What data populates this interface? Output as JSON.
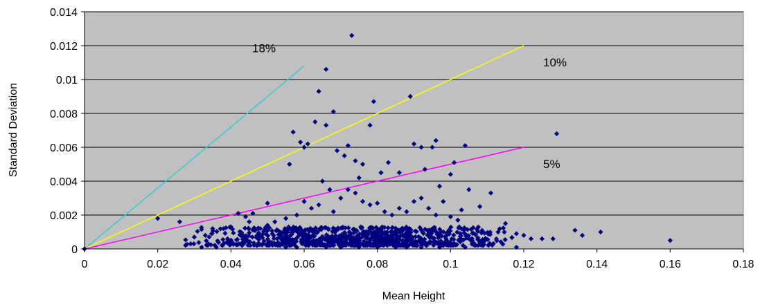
{
  "chart_data": {
    "type": "scatter",
    "title": "",
    "xlabel": "Mean Height",
    "ylabel": "Standard Deviation",
    "xlim": [
      0,
      0.18
    ],
    "ylim": [
      0,
      0.014
    ],
    "x_ticks": [
      "0",
      "0.02",
      "0.04",
      "0.06",
      "0.08",
      "0.1",
      "0.12",
      "0.14",
      "0.16",
      "0.18"
    ],
    "y_ticks": [
      "0",
      "0.002",
      "0.004",
      "0.006",
      "0.008",
      "0.01",
      "0.012",
      "0.014"
    ],
    "grid": "horizontal",
    "plot_background": "#c0c0c0",
    "marker_color": "#000080",
    "reference_lines": [
      {
        "label": "18%",
        "color": "#33cccc",
        "x": [
          0,
          0.06
        ],
        "y": [
          0,
          0.0108
        ]
      },
      {
        "label": "10%",
        "color": "#ffff00",
        "x": [
          0,
          0.12
        ],
        "y": [
          0,
          0.012
        ]
      },
      {
        "label": "5%",
        "color": "#ff00ff",
        "x": [
          0,
          0.12
        ],
        "y": [
          0,
          0.006
        ]
      }
    ],
    "points": [
      [
        0,
        0
      ],
      [
        0.02,
        0.0018
      ],
      [
        0.026,
        0.0016
      ],
      [
        0.05,
        0.0027
      ],
      [
        0.056,
        0.005
      ],
      [
        0.057,
        0.0069
      ],
      [
        0.059,
        0.0063
      ],
      [
        0.06,
        0.006
      ],
      [
        0.061,
        0.0062
      ],
      [
        0.063,
        0.0075
      ],
      [
        0.064,
        0.0093
      ],
      [
        0.066,
        0.0106
      ],
      [
        0.066,
        0.0073
      ],
      [
        0.068,
        0.0081
      ],
      [
        0.069,
        0.0058
      ],
      [
        0.071,
        0.0055
      ],
      [
        0.072,
        0.0061
      ],
      [
        0.073,
        0.0126
      ],
      [
        0.074,
        0.0052
      ],
      [
        0.075,
        0.0042
      ],
      [
        0.076,
        0.005
      ],
      [
        0.078,
        0.0073
      ],
      [
        0.079,
        0.0087
      ],
      [
        0.081,
        0.0045
      ],
      [
        0.083,
        0.0051
      ],
      [
        0.086,
        0.0045
      ],
      [
        0.089,
        0.009
      ],
      [
        0.09,
        0.0062
      ],
      [
        0.092,
        0.006
      ],
      [
        0.093,
        0.0047
      ],
      [
        0.095,
        0.006
      ],
      [
        0.096,
        0.0064
      ],
      [
        0.097,
        0.0037
      ],
      [
        0.1,
        0.0044
      ],
      [
        0.101,
        0.0051
      ],
      [
        0.103,
        0.0023
      ],
      [
        0.104,
        0.0061
      ],
      [
        0.105,
        0.0035
      ],
      [
        0.108,
        0.0025
      ],
      [
        0.111,
        0.0033
      ],
      [
        0.129,
        0.0068
      ],
      [
        0.065,
        0.004
      ],
      [
        0.067,
        0.0035
      ],
      [
        0.07,
        0.003
      ],
      [
        0.072,
        0.0035
      ],
      [
        0.074,
        0.0033
      ],
      [
        0.076,
        0.0028
      ],
      [
        0.078,
        0.0026
      ],
      [
        0.08,
        0.0027
      ],
      [
        0.082,
        0.0022
      ],
      [
        0.084,
        0.002
      ],
      [
        0.086,
        0.0024
      ],
      [
        0.088,
        0.0022
      ],
      [
        0.09,
        0.0028
      ],
      [
        0.092,
        0.003
      ],
      [
        0.094,
        0.0024
      ],
      [
        0.096,
        0.002
      ],
      [
        0.098,
        0.0028
      ],
      [
        0.1,
        0.0019
      ],
      [
        0.102,
        0.0017
      ],
      [
        0.06,
        0.0028
      ],
      [
        0.062,
        0.0024
      ],
      [
        0.064,
        0.0026
      ],
      [
        0.068,
        0.0022
      ],
      [
        0.058,
        0.002
      ],
      [
        0.055,
        0.0018
      ],
      [
        0.052,
        0.0016
      ],
      [
        0.05,
        0.0014
      ],
      [
        0.048,
        0.0012
      ],
      [
        0.045,
        0.0016
      ],
      [
        0.042,
        0.0021
      ],
      [
        0.044,
        0.0019
      ],
      [
        0.046,
        0.0021
      ],
      [
        0.04,
        0.0013
      ],
      [
        0.038,
        0.0012
      ],
      [
        0.035,
        0.0012
      ],
      [
        0.033,
        0.0008
      ],
      [
        0.03,
        0.0007
      ],
      [
        0.029,
        0.0003
      ],
      [
        0.032,
        0.0001
      ],
      [
        0.036,
        0.0001
      ],
      [
        0.055,
        0.0001
      ],
      [
        0.058,
        0.0001
      ],
      [
        0.066,
        0.0001
      ],
      [
        0.07,
        0.0001
      ],
      [
        0.075,
        0.0001
      ],
      [
        0.08,
        0.0001
      ],
      [
        0.085,
        0.0001
      ],
      [
        0.088,
        0.0001
      ],
      [
        0.092,
        0.0001
      ],
      [
        0.097,
        0.0001
      ],
      [
        0.104,
        0.0001
      ],
      [
        0.118,
        0.0001
      ],
      [
        0.113,
        0.001
      ],
      [
        0.115,
        0.0015
      ],
      [
        0.118,
        0.0009
      ],
      [
        0.12,
        0.0008
      ],
      [
        0.122,
        0.0006
      ],
      [
        0.125,
        0.0006
      ],
      [
        0.128,
        0.0006
      ],
      [
        0.134,
        0.0011
      ],
      [
        0.136,
        0.0008
      ],
      [
        0.141,
        0.001
      ],
      [
        0.16,
        0.0005
      ]
    ],
    "dense_cluster": {
      "x_range": [
        0.027,
        0.12
      ],
      "y_range": [
        0.0002,
        0.0013
      ],
      "count": 900
    }
  }
}
